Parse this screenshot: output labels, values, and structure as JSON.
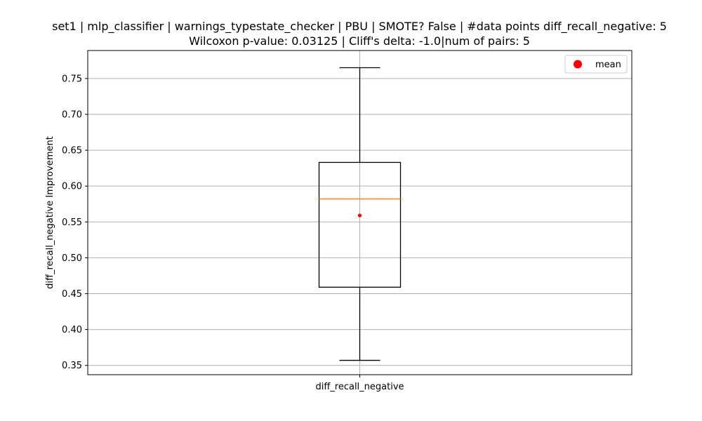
{
  "chart_data": {
    "type": "box",
    "title": "set1 | mlp_classifier | warnings_typestate_checker | PBU | SMOTE? False | #data points diff_recall_negative: 5",
    "subtitle": "Wilcoxon p-value: 0.03125 | Cliff's delta: -1.0|num of pairs: 5",
    "xlabel": "",
    "ylabel": "diff_recall_negative Improvement",
    "ylim": [
      0.337,
      0.789
    ],
    "yticks": [
      0.35,
      0.4,
      0.45,
      0.5,
      0.55,
      0.6,
      0.65,
      0.7,
      0.75
    ],
    "ytick_labels": [
      "0.35",
      "0.40",
      "0.45",
      "0.50",
      "0.55",
      "0.60",
      "0.65",
      "0.70",
      "0.75"
    ],
    "grid": true,
    "legend": {
      "placement": "top-right",
      "entries": [
        {
          "label": "mean",
          "color": "#ff0000",
          "marker": "circle"
        }
      ]
    },
    "boxes": [
      {
        "category": "diff_recall_negative",
        "whisker_low": 0.357,
        "q1": 0.459,
        "median": 0.582,
        "q3": 0.633,
        "whisker_high": 0.765,
        "mean": 0.559
      }
    ],
    "colors": {
      "box": "#000000",
      "median": "#ff7f0e",
      "mean": "#ff0000",
      "grid": "#b0b0b0"
    }
  }
}
